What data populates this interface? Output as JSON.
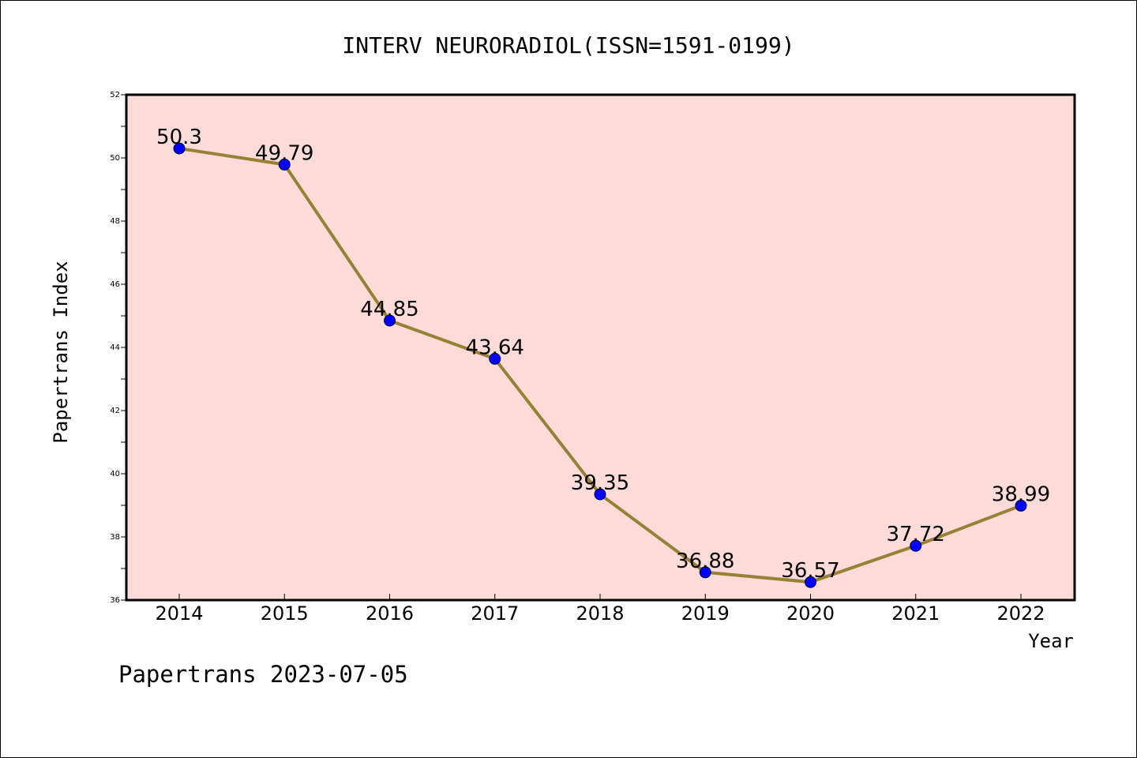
{
  "chart_data": {
    "type": "line",
    "title": "INTERV NEURORADIOL(ISSN=1591-0199)",
    "xlabel": "Year",
    "ylabel": "Papertrans Index",
    "categories": [
      "2014",
      "2015",
      "2016",
      "2017",
      "2018",
      "2019",
      "2020",
      "2021",
      "2022"
    ],
    "series": [
      {
        "values": [
          50.3,
          49.79,
          44.85,
          43.64,
          39.35,
          36.88,
          36.57,
          37.72,
          38.99
        ],
        "labels": [
          "50.3",
          "49.79",
          "44.85",
          "43.64",
          "39.35",
          "36.88",
          "36.57",
          "37.72",
          "38.99"
        ]
      }
    ],
    "ylim": [
      36,
      52
    ],
    "yticks": [
      "36",
      "38",
      "40",
      "42",
      "44",
      "46",
      "48",
      "50",
      "52"
    ],
    "grid": false,
    "colors": {
      "plot_background": "#fddbd8",
      "line": "#9a8036",
      "marker": "#0000ff"
    }
  },
  "footer": {
    "watermark": "Papertrans 2023-07-05"
  }
}
